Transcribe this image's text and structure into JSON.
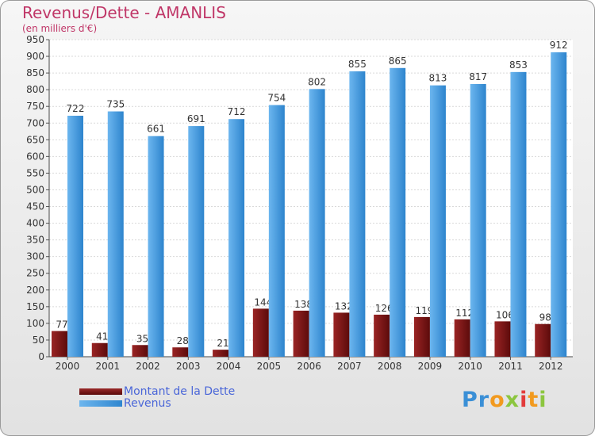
{
  "chart_data": {
    "type": "bar",
    "title": "Revenus/Dette - AMANLIS",
    "subtitle": "(en milliers d'€)",
    "categories": [
      "2000",
      "2001",
      "2002",
      "2003",
      "2004",
      "2005",
      "2006",
      "2007",
      "2008",
      "2009",
      "2010",
      "2011",
      "2012"
    ],
    "series": [
      {
        "name": "Montant de la Dette",
        "color": "#7a1212",
        "values": [
          77,
          41,
          35,
          28,
          21,
          144,
          138,
          132,
          126,
          119,
          112,
          106,
          98
        ]
      },
      {
        "name": "Revenus",
        "color": "#4a9fe0",
        "values": [
          722,
          735,
          661,
          691,
          712,
          754,
          802,
          855,
          865,
          813,
          817,
          853,
          912
        ]
      }
    ],
    "ylim": [
      0,
      950
    ],
    "yticks": [
      0,
      50,
      100,
      150,
      200,
      250,
      300,
      350,
      400,
      450,
      500,
      550,
      600,
      650,
      700,
      750,
      800,
      850,
      900,
      950
    ],
    "grid": true,
    "legend_position": "bottom-left"
  },
  "logo": {
    "p1": "Pr",
    "p2": "o",
    "p3": "x",
    "p4": "i",
    "p5": "t",
    "p6": "i"
  }
}
